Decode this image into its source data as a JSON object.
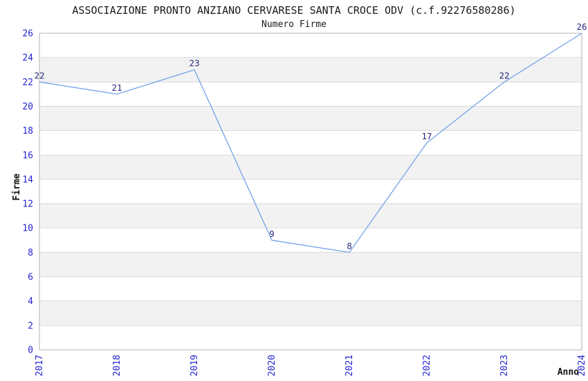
{
  "chart_data": {
    "type": "line",
    "title": "ASSOCIAZIONE PRONTO ANZIANO CERVARESE SANTA CROCE ODV (c.f.92276580286)",
    "subtitle": "Numero Firme",
    "xlabel": "Anno",
    "ylabel": "Firme",
    "categories": [
      "2017",
      "2018",
      "2019",
      "2020",
      "2021",
      "2022",
      "2023",
      "2024"
    ],
    "series": [
      {
        "name": "Numero Firme",
        "values": [
          22,
          21,
          23,
          9,
          8,
          17,
          22,
          26
        ]
      }
    ],
    "data_labels": [
      "22",
      "21",
      "23",
      "9",
      "8",
      "17",
      "22",
      "26"
    ],
    "ylim": [
      0,
      26
    ],
    "yticks": [
      0,
      2,
      4,
      6,
      8,
      10,
      12,
      14,
      16,
      18,
      20,
      22,
      24,
      26
    ],
    "grid": true,
    "legend": "none",
    "band_pattern": "alternating horizontal bands every 2 units, gray on 2-4, 6-8, 10-12, 14-16, 18-20, 22-24",
    "colors": {
      "line": "#74a3e8",
      "tick_label": "#2424d2",
      "data_label": "#28287d",
      "band": "#f2f2f2",
      "gridline": "#d9d9d9",
      "border": "#b3b3b3",
      "title": "#1a1a1a",
      "axis_title": "#111111",
      "background": "#ffffff"
    }
  }
}
